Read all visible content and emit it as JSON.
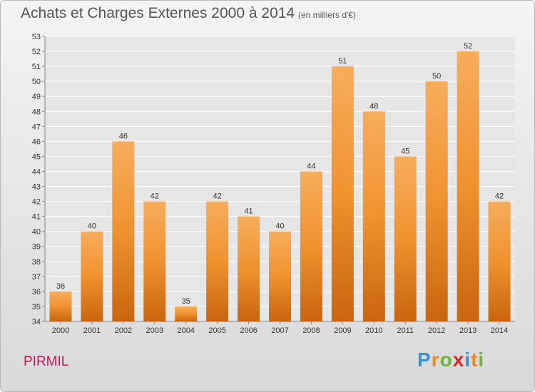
{
  "title": "Achats et Charges Externes 2000 à 2014",
  "unit_note": "(en milliers d'€)",
  "location": "PIRMIL",
  "brand": {
    "text": "Proxiti",
    "letters": [
      "P",
      "r",
      "o",
      "x",
      "i",
      "t",
      "i"
    ],
    "colors": [
      "#3a8fd8",
      "#f08a1c",
      "#6cb33f",
      "#d8262a",
      "#3a8fd8",
      "#f08a1c",
      "#6cb33f"
    ]
  },
  "colors": {
    "bar": "#f0922f",
    "bar_light": "#f7ad5c",
    "bar_dark": "#c9650e",
    "grid": "#ffffff"
  },
  "chart_data": {
    "type": "bar",
    "categories": [
      "2000",
      "2001",
      "2002",
      "2003",
      "2004",
      "2005",
      "2006",
      "2007",
      "2008",
      "2009",
      "2010",
      "2011",
      "2012",
      "2013",
      "2014"
    ],
    "values": [
      36,
      40,
      46,
      42,
      35,
      42,
      41,
      40,
      44,
      51,
      48,
      45,
      50,
      52,
      42
    ],
    "ylim": [
      34,
      53
    ],
    "yticks": [
      34,
      35,
      36,
      37,
      38,
      39,
      40,
      41,
      42,
      43,
      44,
      45,
      46,
      47,
      48,
      49,
      50,
      51,
      52,
      53
    ],
    "grid": true
  }
}
